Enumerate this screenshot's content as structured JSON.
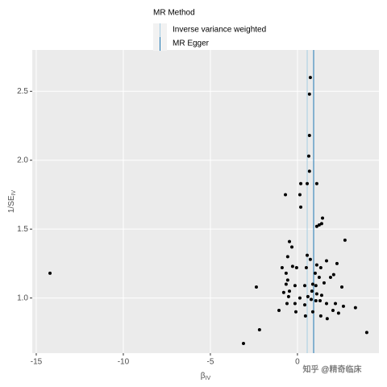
{
  "chart_data": {
    "type": "scatter",
    "legend_title": "MR Method",
    "x_label": "β",
    "x_label_sub": "IV",
    "y_label": "1/SE",
    "y_label_sub": "IV",
    "watermark": "知乎 @精奇临床",
    "xlim": [
      -15.23,
      4.68
    ],
    "ylim": [
      0.6,
      2.8
    ],
    "xticks": [
      -15,
      -10,
      -5,
      0
    ],
    "yticks": [
      {
        "value": 1,
        "label": "1.0"
      },
      1.5,
      {
        "value": 2,
        "label": "2.0"
      },
      2.5
    ],
    "grid": true,
    "point_color": "#000000",
    "lines": [
      {
        "name": "Inverse variance weighted",
        "color": "#a6cee3",
        "x": 0.56
      },
      {
        "name": "MR Egger",
        "color": "#1f78b4",
        "x": 0.93
      }
    ],
    "x": [
      -14.21,
      0.74,
      0.69,
      0.69,
      0.65,
      0.19,
      0.56,
      1.11,
      0.69,
      -0.69,
      0.14,
      0.19,
      1.44,
      1.11,
      1.25,
      1.39,
      2.73,
      -0.46,
      -0.32,
      -0.56,
      0.56,
      0.74,
      1.67,
      -0.88,
      -0.28,
      -0.05,
      0.51,
      2.27,
      1.11,
      1.34,
      -0.65,
      1.02,
      1.25,
      1.9,
      2.08,
      -0.56,
      -2.36,
      -0.65,
      -0.14,
      0.42,
      0.88,
      1.06,
      1.53,
      2.55,
      -0.79,
      -0.46,
      0.83,
      0.6,
      1.11,
      1.39,
      -0.51,
      0.14,
      0.79,
      1.06,
      1.3,
      1.67,
      2.18,
      -0.14,
      -0.6,
      0.42,
      2.64,
      3.33,
      -1.06,
      -0.09,
      0.88,
      2.04,
      2.36,
      1.34,
      1.71,
      0.46,
      -2.18,
      3.98,
      -3.1
    ],
    "y": [
      1.18,
      2.6,
      2.48,
      2.18,
      2.03,
      1.83,
      1.83,
      1.83,
      1.92,
      1.75,
      1.75,
      1.66,
      1.58,
      1.52,
      1.53,
      1.54,
      1.42,
      1.41,
      1.37,
      1.3,
      1.31,
      1.28,
      1.27,
      1.22,
      1.23,
      1.22,
      1.22,
      1.25,
      1.24,
      1.22,
      1.18,
      1.18,
      1.15,
      1.15,
      1.17,
      1.13,
      1.08,
      1.1,
      1.09,
      1.09,
      1.1,
      1.09,
      1.11,
      1.08,
      1.04,
      1.05,
      1.05,
      1.01,
      1.03,
      1.02,
      1.01,
      1.0,
      0.99,
      0.98,
      0.98,
      0.96,
      0.96,
      0.96,
      0.96,
      0.95,
      0.94,
      0.93,
      0.91,
      0.9,
      0.9,
      0.91,
      0.89,
      0.87,
      0.85,
      0.87,
      0.77,
      0.75,
      0.67
    ]
  }
}
